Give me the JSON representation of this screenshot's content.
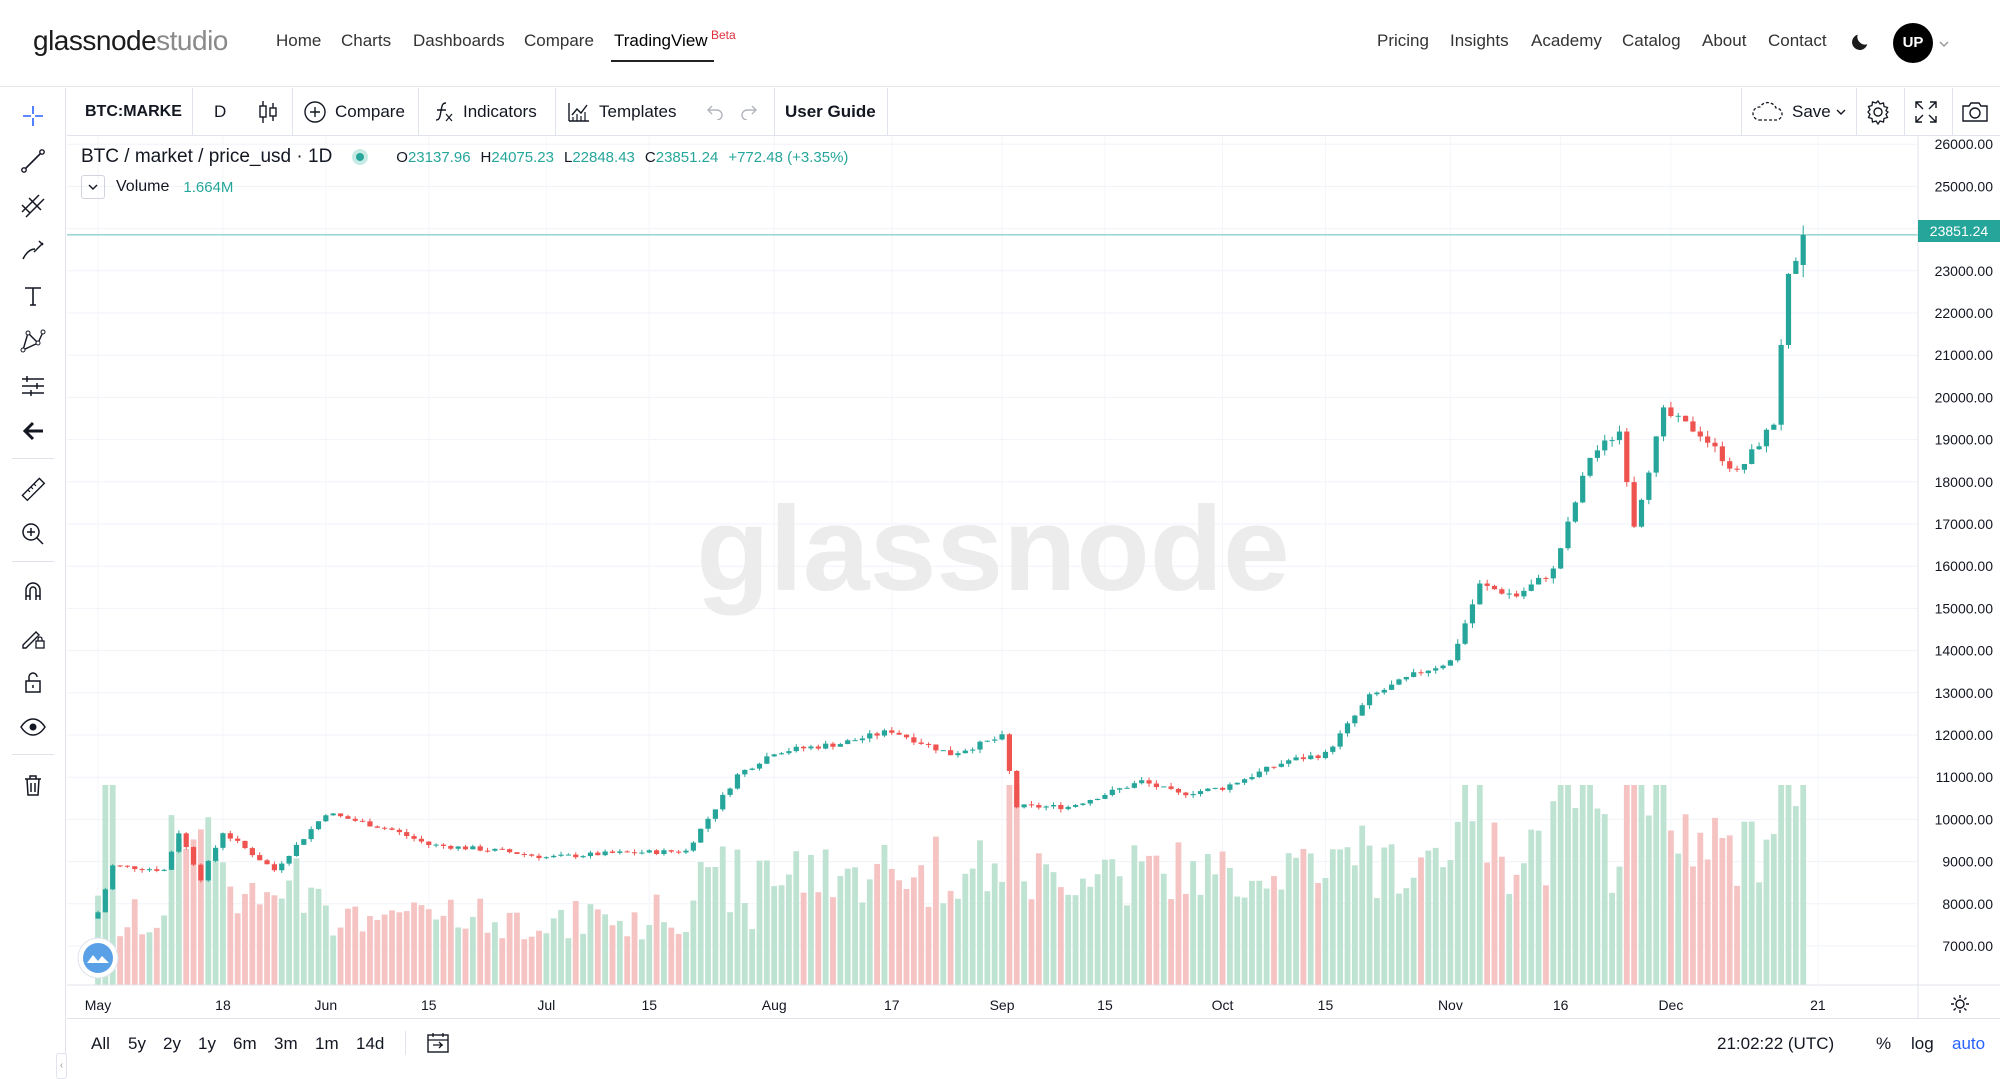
{
  "logo": {
    "part1": "glassnode",
    "part2": "studio"
  },
  "nav_left": [
    {
      "label": "Home"
    },
    {
      "label": "Charts"
    },
    {
      "label": "Dashboards"
    },
    {
      "label": "Compare"
    },
    {
      "label": "TradingView",
      "badge": "Beta"
    }
  ],
  "nav_right": [
    {
      "label": "Pricing"
    },
    {
      "label": "Insights"
    },
    {
      "label": "Academy"
    },
    {
      "label": "Catalog"
    },
    {
      "label": "About"
    },
    {
      "label": "Contact"
    }
  ],
  "user_initials": "UP",
  "toolbar": {
    "symbol": "BTC:MARKE",
    "interval": "D",
    "compare_label": "Compare",
    "indicators_label": "Indicators",
    "templates_label": "Templates",
    "user_guide_label": "User Guide",
    "save_label": "Save"
  },
  "legend": {
    "description": "BTC / market / price_usd · 1D",
    "open_key": "O",
    "open": "23137.96",
    "high_key": "H",
    "high": "24075.23",
    "low_key": "L",
    "low": "22848.43",
    "close_key": "C",
    "close": "23851.24",
    "change": "+772.48 (+3.35%)",
    "volume_label": "Volume",
    "volume_value": "1.664M"
  },
  "watermark": "glassnode",
  "last_price_label": "23851.24",
  "bottom": {
    "ranges": [
      "All",
      "5y",
      "2y",
      "1y",
      "6m",
      "3m",
      "1m",
      "14d"
    ],
    "clock": "21:02:22 (UTC)",
    "percent_label": "%",
    "log_label": "log",
    "auto_label": "auto"
  },
  "colors": {
    "up": "#26a69a",
    "down": "#ef5350",
    "vol_up": "#bfe3d2",
    "vol_down": "#f6c3c3",
    "beta": "#e0303c",
    "accent": "#2962ff"
  },
  "chart_data": {
    "type": "candlestick",
    "symbol": "BTC / market / price_usd",
    "interval": "1D",
    "y_axis_ticks": [
      7000,
      8000,
      9000,
      10000,
      11000,
      12000,
      13000,
      14000,
      15000,
      16000,
      17000,
      18000,
      19000,
      20000,
      21000,
      22000,
      23000,
      24000,
      25000,
      26000
    ],
    "ylim": [
      6100,
      26100
    ],
    "x_axis_ticks": [
      "May",
      "18",
      "Jun",
      "15",
      "Jul",
      "15",
      "Aug",
      "17",
      "Sep",
      "15",
      "Oct",
      "15",
      "Nov",
      "16",
      "Dec",
      "21"
    ],
    "close_points": [
      [
        "May 1",
        7800
      ],
      [
        "May 3",
        8900
      ],
      [
        "May 10",
        8800
      ],
      [
        "May 12",
        9700
      ],
      [
        "May 15",
        8600
      ],
      [
        "May 18",
        9700
      ],
      [
        "May 25",
        8800
      ],
      [
        "Jun 1",
        10150
      ],
      [
        "Jun 10",
        9750
      ],
      [
        "Jun 15",
        9400
      ],
      [
        "Jun 25",
        9250
      ],
      [
        "Jul 1",
        9100
      ],
      [
        "Jul 10",
        9200
      ],
      [
        "Jul 20",
        9250
      ],
      [
        "Jul 27",
        11050
      ],
      [
        "Aug 1",
        11600
      ],
      [
        "Aug 10",
        11800
      ],
      [
        "Aug 17",
        12100
      ],
      [
        "Aug 25",
        11550
      ],
      [
        "Sep 1",
        11950
      ],
      [
        "Sep 3",
        10300
      ],
      [
        "Sep 10",
        10300
      ],
      [
        "Sep 20",
        10900
      ],
      [
        "Sep 25",
        10600
      ],
      [
        "Oct 1",
        10750
      ],
      [
        "Oct 10",
        11400
      ],
      [
        "Oct 15",
        11550
      ],
      [
        "Oct 21",
        12900
      ],
      [
        "Oct 28",
        13500
      ],
      [
        "Nov 1",
        13750
      ],
      [
        "Nov 5",
        15550
      ],
      [
        "Nov 10",
        15300
      ],
      [
        "Nov 15",
        15900
      ],
      [
        "Nov 20",
        18600
      ],
      [
        "Nov 24",
        19200
      ],
      [
        "Nov 26",
        17000
      ],
      [
        "Nov 30",
        19650
      ],
      [
        "Dec 5",
        19150
      ],
      [
        "Dec 10",
        18200
      ],
      [
        "Dec 15",
        19400
      ],
      [
        "Dec 16",
        21300
      ],
      [
        "Dec 17",
        22800
      ],
      [
        "Dec 18",
        23100
      ],
      [
        "Dec 19",
        23851
      ]
    ],
    "last_ohlc": {
      "open": 23137.96,
      "high": 24075.23,
      "low": 22848.43,
      "close": 23851.24
    },
    "volume_last": "1.664M"
  }
}
